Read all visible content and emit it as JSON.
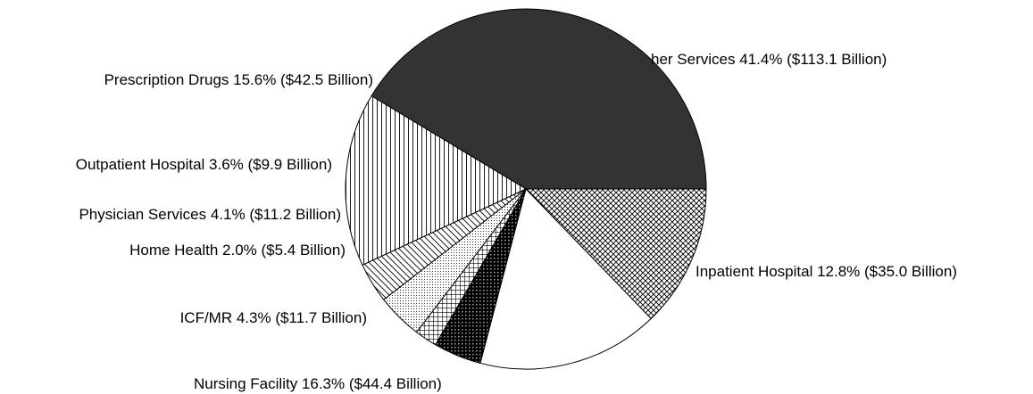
{
  "chart_data": {
    "type": "pie",
    "title": "",
    "legend": "none",
    "slices": [
      {
        "category": "Other Services",
        "label": "her Services 41.4% ($113.1 Billion)",
        "percent": 41.4,
        "value": 113.1,
        "pattern": "solid",
        "color": "#333333"
      },
      {
        "category": "Inpatient Hospital",
        "label": "Inpatient Hospital 12.8% ($35.0 Billion)",
        "percent": 12.8,
        "value": 35.0,
        "pattern": "crosshatch-diagonal",
        "color": "#000000"
      },
      {
        "category": "Nursing Facility",
        "label": "Nursing Facility 16.3% ($44.4 Billion)",
        "percent": 16.3,
        "value": 44.4,
        "pattern": "none",
        "color": "#ffffff"
      },
      {
        "category": "ICF/MR",
        "label": "ICF/MR 4.3% ($11.7 Billion)",
        "percent": 4.3,
        "value": 11.7,
        "pattern": "dense-diamond",
        "color": "#000000"
      },
      {
        "category": "Home Health",
        "label": "Home Health 2.0% ($5.4 Billion)",
        "percent": 2.0,
        "value": 5.4,
        "pattern": "grid",
        "color": "#000000"
      },
      {
        "category": "Physician Services",
        "label": "Physician Services 4.1% ($11.2 Billion)",
        "percent": 4.1,
        "value": 11.2,
        "pattern": "dots",
        "color": "#000000"
      },
      {
        "category": "Outpatient Hospital",
        "label": "Outpatient Hospital 3.6% ($9.9 Billion)",
        "percent": 3.6,
        "value": 9.9,
        "pattern": "diagonal-lines",
        "color": "#000000"
      },
      {
        "category": "Prescription Drugs",
        "label": "Prescription Drugs 15.6% ($42.5 Billion)",
        "percent": 15.6,
        "value": 42.5,
        "pattern": "vertical-lines",
        "color": "#000000"
      }
    ],
    "units": "Billion",
    "start_angle_deg": 0,
    "direction": "clockwise"
  }
}
